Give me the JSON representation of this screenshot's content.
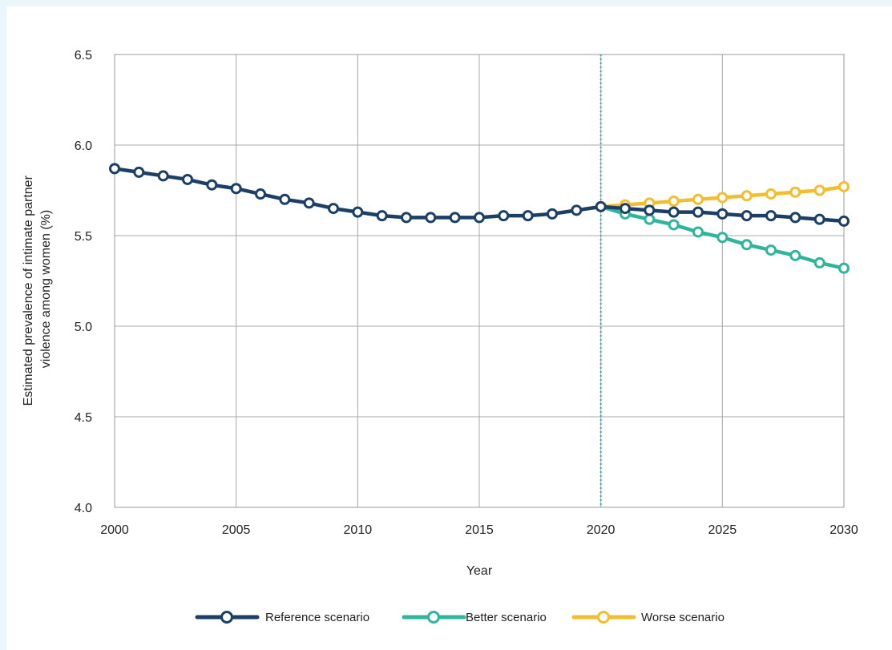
{
  "chart_data": {
    "type": "line",
    "xlabel": "Year",
    "ylabel_lines": [
      "Estimated prevalence of intimate partner",
      "violence among women (%)"
    ],
    "xlim": [
      2000,
      2030
    ],
    "ylim": [
      4.0,
      6.5
    ],
    "x_ticks": [
      "2000",
      "2005",
      "2010",
      "2015",
      "2020",
      "2025",
      "2030"
    ],
    "y_ticks": [
      "4.0",
      "4.5",
      "5.0",
      "5.5",
      "6.0",
      "6.5"
    ],
    "grid": true,
    "legend_position": "bottom",
    "reference_line_year": 2020,
    "reference_line_color": "#2ab0bf",
    "series": [
      {
        "name": "Reference scenario",
        "color": "#1b3f66",
        "x": [
          2000,
          2001,
          2002,
          2003,
          2004,
          2005,
          2006,
          2007,
          2008,
          2009,
          2010,
          2011,
          2012,
          2013,
          2014,
          2015,
          2016,
          2017,
          2018,
          2019,
          2020,
          2021,
          2022,
          2023,
          2024,
          2025,
          2026,
          2027,
          2028,
          2029,
          2030
        ],
        "values": [
          5.87,
          5.85,
          5.83,
          5.81,
          5.78,
          5.76,
          5.73,
          5.7,
          5.68,
          5.65,
          5.63,
          5.61,
          5.6,
          5.6,
          5.6,
          5.6,
          5.61,
          5.61,
          5.62,
          5.64,
          5.66,
          5.65,
          5.64,
          5.63,
          5.63,
          5.62,
          5.61,
          5.61,
          5.6,
          5.59,
          5.58
        ]
      },
      {
        "name": "Better  scenario",
        "color": "#2fb59c",
        "x": [
          2020,
          2021,
          2022,
          2023,
          2024,
          2025,
          2026,
          2027,
          2028,
          2029,
          2030
        ],
        "values": [
          5.66,
          5.62,
          5.59,
          5.56,
          5.52,
          5.49,
          5.45,
          5.42,
          5.39,
          5.35,
          5.32
        ]
      },
      {
        "name": "Worse scenario",
        "color": "#f2bd2e",
        "x": [
          2020,
          2021,
          2022,
          2023,
          2024,
          2025,
          2026,
          2027,
          2028,
          2029,
          2030
        ],
        "values": [
          5.66,
          5.67,
          5.68,
          5.69,
          5.7,
          5.71,
          5.72,
          5.73,
          5.74,
          5.75,
          5.77
        ]
      }
    ]
  }
}
